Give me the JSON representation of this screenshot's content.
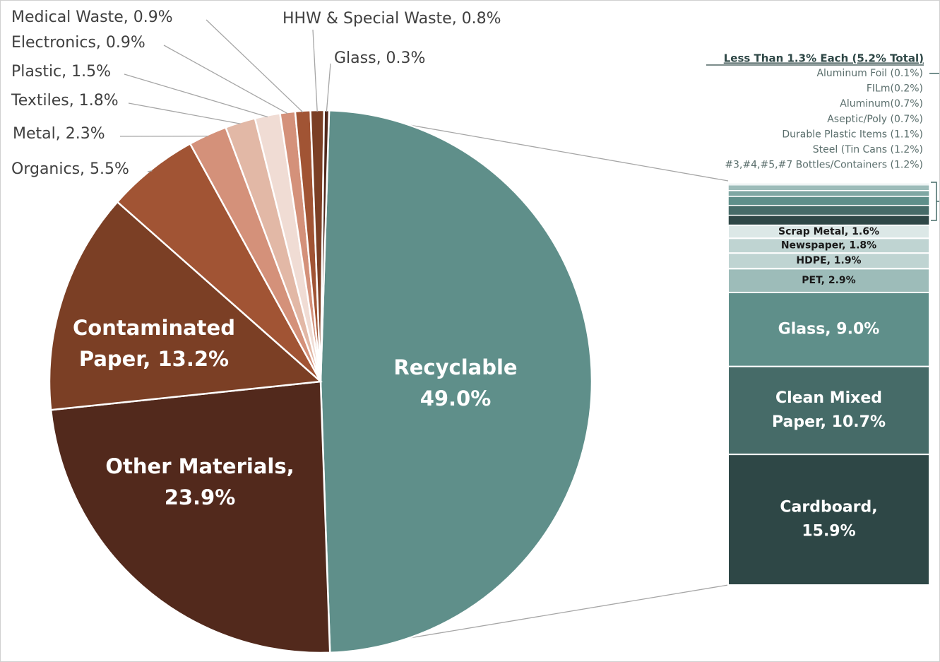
{
  "chart_data": {
    "type": "pie-of-bar",
    "slices": {
      "labels": [
        [
          "Recyclable",
          "49.0%"
        ],
        [
          "Other Materials,",
          "23.9%"
        ],
        [
          "Contaminated",
          "Paper, 13.2%"
        ],
        [
          "Organics, 5.5%"
        ],
        [
          "Metal, 2.3%"
        ],
        [
          "Textiles, 1.8%"
        ],
        [
          "Plastic, 1.5%"
        ],
        [
          "Electronics, 0.9%"
        ],
        [
          "Medical Waste, 0.9%"
        ],
        [
          "HHW & Special  Waste, 0.8%"
        ],
        [
          "Glass, 0.3%"
        ]
      ],
      "values": [
        49.0,
        23.9,
        13.2,
        5.5,
        2.3,
        1.8,
        1.5,
        0.9,
        0.9,
        0.8,
        0.3
      ],
      "colors": [
        "#5f8f8a",
        "#52291c",
        "#7b3f25",
        "#a15434",
        "#d4917a",
        "#e2b8a6",
        "#f0dcd4",
        "#d4917a",
        "#a15434",
        "#7b3f25",
        "#52291c"
      ]
    },
    "bar": {
      "labels": [
        [
          "Cardboard,",
          "15.9%"
        ],
        [
          "Clean Mixed",
          "Paper, 10.7%"
        ],
        [
          "Glass, 9.0%"
        ],
        [
          "PET, 2.9%"
        ],
        [
          "HDPE, 1.9%"
        ],
        [
          "Newspaper, 1.8%"
        ],
        [
          "Scrap Metal, 1.6%"
        ]
      ],
      "values": [
        15.9,
        10.7,
        9.0,
        2.9,
        1.9,
        1.8,
        1.6
      ],
      "colors": [
        "#2e4746",
        "#466b68",
        "#5f8f8a",
        "#9dbcb9",
        "#bfd4d2",
        "#bfd4d2",
        "#dce8e7"
      ]
    },
    "group": {
      "title": "Less Than 1.3% Each (5.2% Total)",
      "labels": [
        "Aluminum Foil (0.1%)",
        "FILm(0.2%)",
        "Aluminum(0.7%)",
        "Aseptic/Poly (0.7%)",
        "Durable Plastic Items (1.1%)",
        "Steel (Tin Cans (1.2%)",
        "#3,#4,#5,#7 Bottles/Containers (1.2%)"
      ],
      "values": [
        0.1,
        0.2,
        0.7,
        0.7,
        1.1,
        1.2,
        1.2
      ],
      "colors": [
        "#dce8e7",
        "#bfd4d2",
        "#9dbcb9",
        "#7fa7a3",
        "#5f8f8a",
        "#466b68",
        "#2e4746"
      ]
    }
  }
}
